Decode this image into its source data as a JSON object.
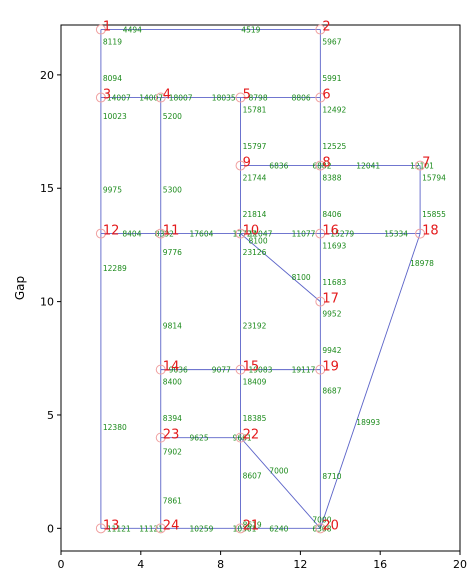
{
  "chart_data": {
    "type": "network-graph",
    "ylabel": "Gap",
    "xlim": [
      0,
      20
    ],
    "ylim": [
      -1,
      22.2
    ],
    "xticks": [
      "0",
      "4",
      "8",
      "12",
      "16",
      "20"
    ],
    "yticks": [
      "0",
      "5",
      "10",
      "15",
      "20"
    ],
    "nodes": [
      {
        "id": "1",
        "x": 2,
        "y": 22
      },
      {
        "id": "2",
        "x": 13,
        "y": 22
      },
      {
        "id": "3",
        "x": 2,
        "y": 19
      },
      {
        "id": "4",
        "x": 5,
        "y": 19
      },
      {
        "id": "5",
        "x": 9,
        "y": 19
      },
      {
        "id": "6",
        "x": 13,
        "y": 19
      },
      {
        "id": "7",
        "x": 18,
        "y": 16
      },
      {
        "id": "8",
        "x": 13,
        "y": 16
      },
      {
        "id": "9",
        "x": 9,
        "y": 16
      },
      {
        "id": "10",
        "x": 9,
        "y": 13
      },
      {
        "id": "11",
        "x": 5,
        "y": 13
      },
      {
        "id": "12",
        "x": 2,
        "y": 13
      },
      {
        "id": "13",
        "x": 2,
        "y": 0
      },
      {
        "id": "14",
        "x": 5,
        "y": 7
      },
      {
        "id": "15",
        "x": 9,
        "y": 7
      },
      {
        "id": "16",
        "x": 13,
        "y": 13
      },
      {
        "id": "17",
        "x": 13,
        "y": 10
      },
      {
        "id": "18",
        "x": 18,
        "y": 13
      },
      {
        "id": "19",
        "x": 13,
        "y": 7
      },
      {
        "id": "20",
        "x": 13,
        "y": 0
      },
      {
        "id": "21",
        "x": 9,
        "y": 0
      },
      {
        "id": "22",
        "x": 9,
        "y": 4
      },
      {
        "id": "23",
        "x": 5,
        "y": 4
      },
      {
        "id": "24",
        "x": 5,
        "y": 0
      }
    ],
    "edges": [
      {
        "from": "1",
        "to": "2",
        "labels": [
          "4494",
          "4519"
        ]
      },
      {
        "from": "1",
        "to": "3",
        "labels": [
          "8119",
          "8094"
        ]
      },
      {
        "from": "2",
        "to": "6",
        "labels": [
          "5967",
          "5991"
        ]
      },
      {
        "from": "3",
        "to": "4",
        "labels": [
          "14007",
          "14007"
        ]
      },
      {
        "from": "3",
        "to": "12",
        "labels": [
          "10023",
          "9975"
        ]
      },
      {
        "from": "4",
        "to": "5",
        "labels": [
          "18007",
          "18035"
        ]
      },
      {
        "from": "4",
        "to": "11",
        "labels": [
          "5200",
          "5300"
        ]
      },
      {
        "from": "5",
        "to": "6",
        "labels": [
          "8798",
          "8806"
        ]
      },
      {
        "from": "5",
        "to": "9",
        "labels": [
          "15781",
          "15797"
        ]
      },
      {
        "from": "6",
        "to": "8",
        "labels": [
          "12492",
          "12525"
        ]
      },
      {
        "from": "7",
        "to": "8",
        "labels": [
          "12101",
          "12041"
        ]
      },
      {
        "from": "7",
        "to": "18",
        "labels": [
          "15794",
          "15855"
        ]
      },
      {
        "from": "8",
        "to": "9",
        "labels": [
          "6882",
          "6836"
        ]
      },
      {
        "from": "8",
        "to": "16",
        "labels": [
          "8388",
          "8406"
        ]
      },
      {
        "from": "9",
        "to": "10",
        "labels": [
          "21744",
          "21814"
        ]
      },
      {
        "from": "10",
        "to": "11",
        "labels": [
          "17727",
          "17604"
        ]
      },
      {
        "from": "10",
        "to": "16",
        "labels": [
          "11047",
          "11077"
        ]
      },
      {
        "from": "10",
        "to": "15",
        "labels": [
          "23126",
          "23192"
        ]
      },
      {
        "from": "10",
        "to": "17",
        "labels": [
          "8100",
          "8100"
        ]
      },
      {
        "from": "11",
        "to": "12",
        "labels": [
          "8392",
          "8404"
        ]
      },
      {
        "from": "11",
        "to": "14",
        "labels": [
          "9776",
          "9814"
        ]
      },
      {
        "from": "12",
        "to": "13",
        "labels": [
          "12289",
          "12380"
        ]
      },
      {
        "from": "13",
        "to": "24",
        "labels": [
          "11121",
          "11121"
        ]
      },
      {
        "from": "14",
        "to": "15",
        "labels": [
          "9036",
          "9077"
        ]
      },
      {
        "from": "14",
        "to": "23",
        "labels": [
          "8400",
          "8394"
        ]
      },
      {
        "from": "15",
        "to": "19",
        "labels": [
          "19083",
          "19117"
        ]
      },
      {
        "from": "15",
        "to": "22",
        "labels": [
          "18409",
          "18385"
        ]
      },
      {
        "from": "16",
        "to": "17",
        "labels": [
          "11693",
          "11683"
        ]
      },
      {
        "from": "16",
        "to": "18",
        "labels": [
          "15279",
          "15334"
        ]
      },
      {
        "from": "17",
        "to": "19",
        "labels": [
          "9952",
          "9942"
        ]
      },
      {
        "from": "18",
        "to": "20",
        "labels": [
          "18978",
          "18993"
        ]
      },
      {
        "from": "19",
        "to": "20",
        "labels": [
          "8687",
          "8710"
        ]
      },
      {
        "from": "20",
        "to": "21",
        "labels": [
          "6308",
          "6240"
        ]
      },
      {
        "from": "20",
        "to": "22",
        "labels": [
          "7000",
          "7000"
        ]
      },
      {
        "from": "21",
        "to": "22",
        "labels": [
          "8619",
          "8607"
        ]
      },
      {
        "from": "21",
        "to": "24",
        "labels": [
          "10301",
          "10259"
        ]
      },
      {
        "from": "22",
        "to": "23",
        "labels": [
          "9661",
          "9625"
        ]
      },
      {
        "from": "23",
        "to": "24",
        "labels": [
          "7902",
          "7861"
        ]
      }
    ]
  },
  "colors": {
    "edge": "#5b63c8",
    "node_label": "#e41a1c",
    "edge_label": "#1b8a1b",
    "node_marker": "#f0a0a0"
  }
}
